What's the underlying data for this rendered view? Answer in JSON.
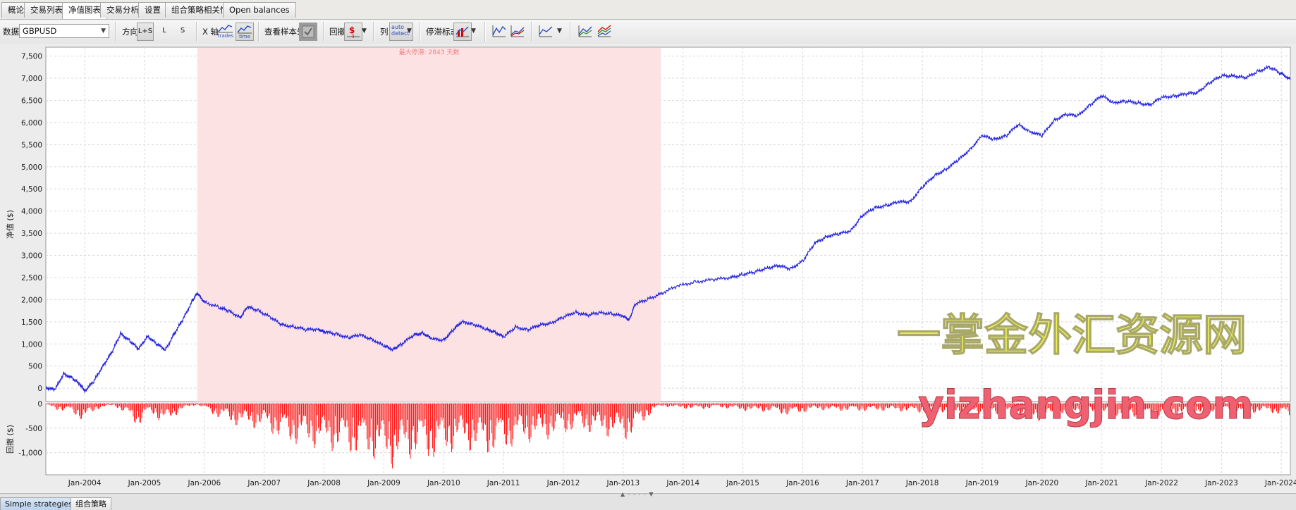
{
  "tabs": [
    {
      "label": "概论"
    },
    {
      "label": "交易列表"
    },
    {
      "label": "净值图表",
      "active": true
    },
    {
      "label": "交易分析"
    },
    {
      "label": "设置"
    },
    {
      "label": "组合策略相关性"
    },
    {
      "label": "Open balances"
    }
  ],
  "toolbar": {
    "data_label": "数据",
    "symbol": "GBPUSD",
    "direction_label": "方向",
    "dir_ls": "L+S",
    "dir_l": "L",
    "dir_s": "S",
    "xaxis_label": "X 轴",
    "xaxis_trades": "trades",
    "xaxis_time": "time",
    "oos_label": "查看样本外",
    "drawdown_label": "回撤",
    "column_label": "列",
    "column_auto_line1": "auto",
    "column_auto_line2": "detect",
    "stagnation_label": "停滞标志"
  },
  "bottom_tabs": [
    {
      "label": "Simple strategies",
      "active": true
    },
    {
      "label": "组合策略"
    }
  ],
  "splitter": "▲ - - - - ▼",
  "colors": {
    "equity": "#2222dd",
    "drawdown": "#ff0000",
    "stagnation": "#fde2e4",
    "stagnation_text": "#f08080"
  },
  "watermark": {
    "cn": "一掌金外汇资源网",
    "en": "yizhangjin.com"
  },
  "chart_data": {
    "type": "line",
    "ylabel": "净值 ($)",
    "y2label": "回撤 ($)",
    "ylim": [
      -300,
      7700
    ],
    "y2lim": [
      -1450,
      0
    ],
    "yticks": [
      0,
      500,
      1000,
      1500,
      2000,
      2500,
      3000,
      3500,
      4000,
      4500,
      5000,
      5500,
      6000,
      6500,
      7000,
      7500
    ],
    "y2ticks": [
      0,
      -500,
      -1000
    ],
    "xlim": [
      2003.35,
      2024.15
    ],
    "xticks": [
      {
        "x": 2004,
        "label": "Jan-2004"
      },
      {
        "x": 2005,
        "label": "Jan-2005"
      },
      {
        "x": 2006,
        "label": "Jan-2006"
      },
      {
        "x": 2007,
        "label": "Jan-2007"
      },
      {
        "x": 2008,
        "label": "Jan-2008"
      },
      {
        "x": 2009,
        "label": "Jan-2009"
      },
      {
        "x": 2010,
        "label": "Jan-2010"
      },
      {
        "x": 2011,
        "label": "Jan-2011"
      },
      {
        "x": 2012,
        "label": "Jan-2012"
      },
      {
        "x": 2013,
        "label": "Jan-2013"
      },
      {
        "x": 2014,
        "label": "Jan-2014"
      },
      {
        "x": 2015,
        "label": "Jan-2015"
      },
      {
        "x": 2016,
        "label": "Jan-2016"
      },
      {
        "x": 2017,
        "label": "Jan-2017"
      },
      {
        "x": 2018,
        "label": "Jan-2018"
      },
      {
        "x": 2019,
        "label": "Jan-2019"
      },
      {
        "x": 2020,
        "label": "Jan-2020"
      },
      {
        "x": 2021,
        "label": "Jan-2021"
      },
      {
        "x": 2022,
        "label": "Jan-2022"
      },
      {
        "x": 2023,
        "label": "Jan-2023"
      },
      {
        "x": 2024,
        "label": "Jan-2024"
      }
    ],
    "stagnation": {
      "start": 2005.88,
      "end": 2013.63,
      "label": "最大停滞: 2843 天数"
    },
    "grid": true,
    "series": [
      {
        "points": [
          [
            2003.35,
            20
          ],
          [
            2003.5,
            -40
          ],
          [
            2003.65,
            330
          ],
          [
            2003.8,
            220
          ],
          [
            2003.95,
            50
          ],
          [
            2004.0,
            -60
          ],
          [
            2004.15,
            150
          ],
          [
            2004.3,
            500
          ],
          [
            2004.45,
            800
          ],
          [
            2004.6,
            1230
          ],
          [
            2004.75,
            1080
          ],
          [
            2004.9,
            880
          ],
          [
            2005.05,
            1180
          ],
          [
            2005.2,
            1000
          ],
          [
            2005.35,
            870
          ],
          [
            2005.5,
            1240
          ],
          [
            2005.65,
            1570
          ],
          [
            2005.8,
            1980
          ],
          [
            2005.88,
            2140
          ],
          [
            2006.0,
            1950
          ],
          [
            2006.25,
            1820
          ],
          [
            2006.4,
            1750
          ],
          [
            2006.6,
            1600
          ],
          [
            2006.72,
            1830
          ],
          [
            2006.9,
            1760
          ],
          [
            2007.1,
            1600
          ],
          [
            2007.3,
            1430
          ],
          [
            2007.5,
            1390
          ],
          [
            2007.7,
            1320
          ],
          [
            2007.9,
            1340
          ],
          [
            2008.0,
            1270
          ],
          [
            2008.2,
            1230
          ],
          [
            2008.4,
            1140
          ],
          [
            2008.6,
            1200
          ],
          [
            2008.8,
            1110
          ],
          [
            2009.0,
            950
          ],
          [
            2009.15,
            880
          ],
          [
            2009.3,
            1000
          ],
          [
            2009.5,
            1200
          ],
          [
            2009.65,
            1250
          ],
          [
            2009.8,
            1110
          ],
          [
            2010.0,
            1090
          ],
          [
            2010.15,
            1300
          ],
          [
            2010.3,
            1500
          ],
          [
            2010.5,
            1450
          ],
          [
            2010.7,
            1330
          ],
          [
            2010.85,
            1280
          ],
          [
            2011.0,
            1150
          ],
          [
            2011.2,
            1380
          ],
          [
            2011.4,
            1320
          ],
          [
            2011.6,
            1420
          ],
          [
            2011.8,
            1480
          ],
          [
            2012.0,
            1600
          ],
          [
            2012.2,
            1720
          ],
          [
            2012.4,
            1650
          ],
          [
            2012.6,
            1700
          ],
          [
            2012.8,
            1690
          ],
          [
            2013.0,
            1620
          ],
          [
            2013.1,
            1550
          ],
          [
            2013.2,
            1900
          ],
          [
            2013.4,
            2000
          ],
          [
            2013.63,
            2140
          ],
          [
            2013.9,
            2300
          ],
          [
            2014.2,
            2400
          ],
          [
            2014.5,
            2450
          ],
          [
            2014.8,
            2500
          ],
          [
            2015.0,
            2570
          ],
          [
            2015.2,
            2620
          ],
          [
            2015.4,
            2720
          ],
          [
            2015.6,
            2760
          ],
          [
            2015.8,
            2700
          ],
          [
            2016.0,
            2870
          ],
          [
            2016.2,
            3270
          ],
          [
            2016.4,
            3430
          ],
          [
            2016.6,
            3480
          ],
          [
            2016.8,
            3560
          ],
          [
            2017.0,
            3900
          ],
          [
            2017.2,
            4070
          ],
          [
            2017.4,
            4130
          ],
          [
            2017.6,
            4200
          ],
          [
            2017.8,
            4220
          ],
          [
            2018.0,
            4540
          ],
          [
            2018.2,
            4800
          ],
          [
            2018.4,
            4950
          ],
          [
            2018.6,
            5150
          ],
          [
            2018.8,
            5400
          ],
          [
            2019.0,
            5700
          ],
          [
            2019.2,
            5620
          ],
          [
            2019.4,
            5700
          ],
          [
            2019.6,
            5950
          ],
          [
            2019.8,
            5800
          ],
          [
            2020.0,
            5700
          ],
          [
            2020.2,
            6050
          ],
          [
            2020.4,
            6180
          ],
          [
            2020.6,
            6150
          ],
          [
            2020.8,
            6400
          ],
          [
            2021.0,
            6600
          ],
          [
            2021.2,
            6450
          ],
          [
            2021.4,
            6480
          ],
          [
            2021.6,
            6440
          ],
          [
            2021.8,
            6400
          ],
          [
            2022.0,
            6560
          ],
          [
            2022.2,
            6600
          ],
          [
            2022.4,
            6640
          ],
          [
            2022.6,
            6680
          ],
          [
            2022.8,
            6900
          ],
          [
            2023.0,
            7050
          ],
          [
            2023.2,
            7060
          ],
          [
            2023.4,
            7000
          ],
          [
            2023.6,
            7150
          ],
          [
            2023.8,
            7250
          ],
          [
            2024.0,
            7100
          ],
          [
            2024.15,
            6980
          ]
        ]
      },
      {
        "envelope": [
          [
            2003.35,
            -30
          ],
          [
            2003.5,
            -120
          ],
          [
            2003.8,
            -220
          ],
          [
            2004.0,
            -400
          ],
          [
            2004.2,
            -120
          ],
          [
            2004.5,
            -40
          ],
          [
            2004.75,
            -320
          ],
          [
            2004.9,
            -480
          ],
          [
            2005.1,
            -200
          ],
          [
            2005.35,
            -460
          ],
          [
            2005.6,
            -150
          ],
          [
            2005.88,
            -20
          ],
          [
            2006.2,
            -280
          ],
          [
            2006.5,
            -450
          ],
          [
            2006.75,
            -500
          ],
          [
            2007.0,
            -520
          ],
          [
            2007.3,
            -780
          ],
          [
            2007.6,
            -880
          ],
          [
            2007.9,
            -920
          ],
          [
            2008.2,
            -1000
          ],
          [
            2008.5,
            -1080
          ],
          [
            2008.8,
            -1150
          ],
          [
            2009.0,
            -1280
          ],
          [
            2009.2,
            -1350
          ],
          [
            2009.5,
            -1100
          ],
          [
            2009.8,
            -1180
          ],
          [
            2010.0,
            -1100
          ],
          [
            2010.3,
            -900
          ],
          [
            2010.6,
            -1080
          ],
          [
            2010.85,
            -1050
          ],
          [
            2011.0,
            -1000
          ],
          [
            2011.3,
            -820
          ],
          [
            2011.6,
            -780
          ],
          [
            2011.9,
            -680
          ],
          [
            2012.2,
            -560
          ],
          [
            2012.5,
            -620
          ],
          [
            2012.8,
            -700
          ],
          [
            2013.1,
            -760
          ],
          [
            2013.4,
            -300
          ],
          [
            2013.63,
            -50
          ],
          [
            2013.9,
            -100
          ],
          [
            2014.3,
            -120
          ],
          [
            2014.6,
            -80
          ],
          [
            2015.0,
            -150
          ],
          [
            2015.5,
            -180
          ],
          [
            2015.8,
            -260
          ],
          [
            2016.2,
            -130
          ],
          [
            2016.6,
            -150
          ],
          [
            2017.0,
            -160
          ],
          [
            2017.5,
            -150
          ],
          [
            2018.0,
            -200
          ],
          [
            2018.5,
            -180
          ],
          [
            2019.0,
            -220
          ],
          [
            2019.3,
            -240
          ],
          [
            2019.8,
            -300
          ],
          [
            2020.0,
            -380
          ],
          [
            2020.5,
            -150
          ],
          [
            2020.8,
            -180
          ],
          [
            2021.0,
            -230
          ],
          [
            2021.5,
            -280
          ],
          [
            2021.8,
            -330
          ],
          [
            2022.0,
            -250
          ],
          [
            2022.5,
            -220
          ],
          [
            2022.8,
            -180
          ],
          [
            2023.0,
            -170
          ],
          [
            2023.5,
            -200
          ],
          [
            2023.8,
            -180
          ],
          [
            2024.15,
            -320
          ]
        ]
      }
    ]
  }
}
